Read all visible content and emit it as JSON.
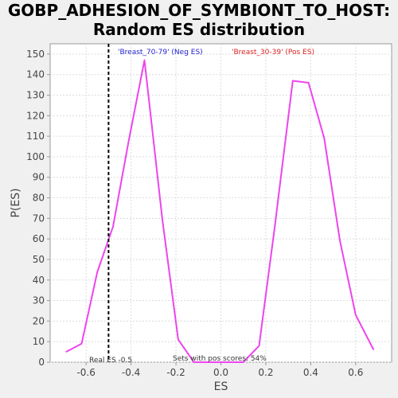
{
  "chart_data": {
    "type": "line",
    "title_line1": "GOBP_ADHESION_OF_SYMBIONT_TO_HOST:",
    "title_line2": "Random ES distribution",
    "xlabel": "ES",
    "ylabel": "P(ES)",
    "xlim": [
      -0.76,
      0.76
    ],
    "ylim": [
      0,
      155
    ],
    "xticks": [
      -0.6,
      -0.4,
      -0.2,
      0.0,
      0.2,
      0.4,
      0.6
    ],
    "xtick_labels": [
      "-0.6",
      "-0.4",
      "-0.2",
      "0.0",
      "0.2",
      "0.4",
      "0.6"
    ],
    "yticks": [
      0,
      10,
      20,
      30,
      40,
      50,
      60,
      70,
      80,
      90,
      100,
      110,
      120,
      130,
      140,
      150
    ],
    "ytick_labels": [
      "0",
      "10",
      "20",
      "30",
      "40",
      "50",
      "60",
      "70",
      "80",
      "90",
      "100",
      "110",
      "120",
      "130",
      "140",
      "150"
    ],
    "grid": true,
    "series": [
      {
        "color": "#ee44ee",
        "x": [
          -0.69,
          -0.62,
          -0.55,
          -0.48,
          -0.41,
          -0.34,
          -0.26,
          -0.19,
          -0.12,
          -0.05,
          0.03,
          0.1,
          0.17,
          0.24,
          0.32,
          0.39,
          0.46,
          0.53,
          0.6,
          0.68
        ],
        "y": [
          5,
          9,
          44,
          66,
          108,
          147,
          69,
          11,
          0,
          0,
          0,
          0,
          8,
          66,
          137,
          136,
          109,
          59,
          23,
          6
        ]
      }
    ],
    "real_es": {
      "x": -0.5,
      "label": "Real ES -0.5",
      "color": "#000000"
    },
    "neg_label": {
      "text": "'Breast_70-79' (Neg ES)",
      "color": "#2222cc"
    },
    "pos_label": {
      "text": "'Breast_30-39' (Pos ES)",
      "color": "#dd2222"
    },
    "pos_scores_label": "Sets with pos scores: 54%"
  }
}
